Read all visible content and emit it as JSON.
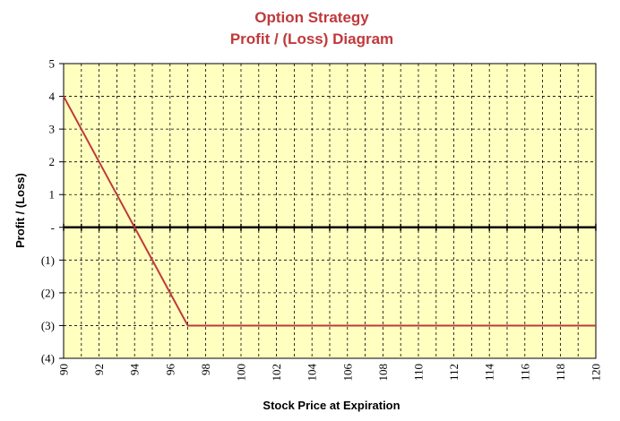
{
  "chart_data": {
    "type": "line",
    "title": "Option Strategy",
    "subtitle": "Profit / (Loss) Diagram",
    "xlabel": "Stock Price at Expiration",
    "ylabel": "Profit / (Loss)",
    "xlim": [
      90,
      120
    ],
    "ylim": [
      -4,
      5
    ],
    "x_ticks": [
      90,
      92,
      94,
      96,
      98,
      100,
      102,
      104,
      106,
      108,
      110,
      112,
      114,
      116,
      118,
      120
    ],
    "x_tick_labels": [
      "90",
      "92",
      "94",
      "96",
      "98",
      "100",
      "102",
      "104",
      "106",
      "108",
      "110",
      "112",
      "114",
      "116",
      "118",
      "120"
    ],
    "y_ticks": [
      5,
      4,
      3,
      2,
      1,
      0,
      -1,
      -2,
      -3,
      -4
    ],
    "y_tick_labels": [
      "5",
      "4",
      "3",
      "2",
      "1",
      "-",
      "(1)",
      "(2)",
      "(3)",
      "(4)"
    ],
    "grid": true,
    "grid_style": "dashed",
    "grid_x_step": 1,
    "plot_background": "#ffffc0",
    "zero_line": true,
    "series": [
      {
        "color": "#c0393b",
        "x": [
          90,
          97,
          120
        ],
        "y": [
          4,
          -3,
          -3
        ]
      }
    ],
    "colors": {
      "title": "#c0393b",
      "line": "#c0393b",
      "grid": "#000000",
      "zero_line": "#000000"
    }
  }
}
